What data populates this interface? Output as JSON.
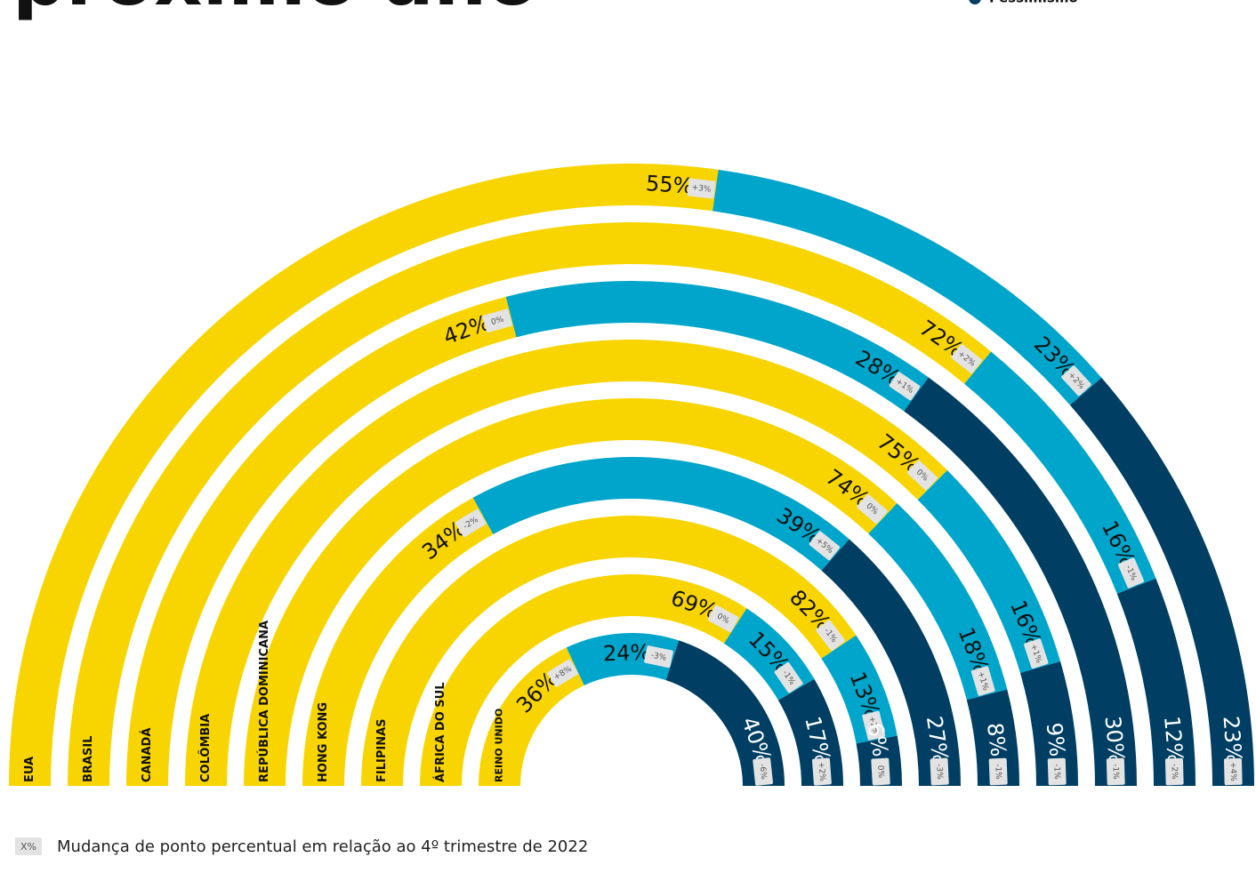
{
  "chart_data": {
    "type": "radial_stacked_bar",
    "title": "próximo ano",
    "categories": [
      "EUA",
      "BRASIL",
      "CANADÁ",
      "COLÔMBIA",
      "REPÚBLICA DOMINICANA",
      "HONG KONG",
      "FILIPINAS",
      "ÁFRICA DO SUL",
      "REINO UNIDO"
    ],
    "series": [
      {
        "color": "#f8d500",
        "values": [
          55,
          72,
          42,
          75,
          74,
          34,
          82,
          69,
          36
        ],
        "value_labels": [
          "55%",
          "72%",
          "42%",
          "75%",
          "74%",
          "34%",
          "82%",
          "69%",
          "36%"
        ],
        "changes": [
          "+3%",
          "+2%",
          "0%",
          "0%",
          "0%",
          "-2%",
          "-1%",
          "0%",
          "+8%"
        ]
      },
      {
        "color": "#00a5cb",
        "values": [
          23,
          16,
          28,
          16,
          18,
          39,
          13,
          15,
          24
        ],
        "value_labels": [
          "23%",
          "16%",
          "28%",
          "16%",
          "18%",
          "39%",
          "13%",
          "15%",
          "24%"
        ],
        "changes": [
          "+2%",
          "-1%",
          "+1%",
          "+1%",
          "+1%",
          "+5%",
          "+2%",
          "-1%",
          "-3%"
        ]
      },
      {
        "name": "Pessimismo",
        "color": "#003f63",
        "values": [
          23,
          12,
          30,
          9,
          8,
          27,
          6,
          17,
          40
        ],
        "value_labels": [
          "23%",
          "12%",
          "30%",
          "9%",
          "8%",
          "27%",
          "6%",
          "17%",
          "40%"
        ],
        "changes": [
          "+4%",
          "-2%",
          "-1%",
          "-1%",
          "-1%",
          "-3%",
          "0%",
          "+2%",
          "-6%"
        ]
      }
    ],
    "note_key": "X%",
    "note": "Mudança de ponto percentual em relação ao 4º trimestre de 2022"
  }
}
